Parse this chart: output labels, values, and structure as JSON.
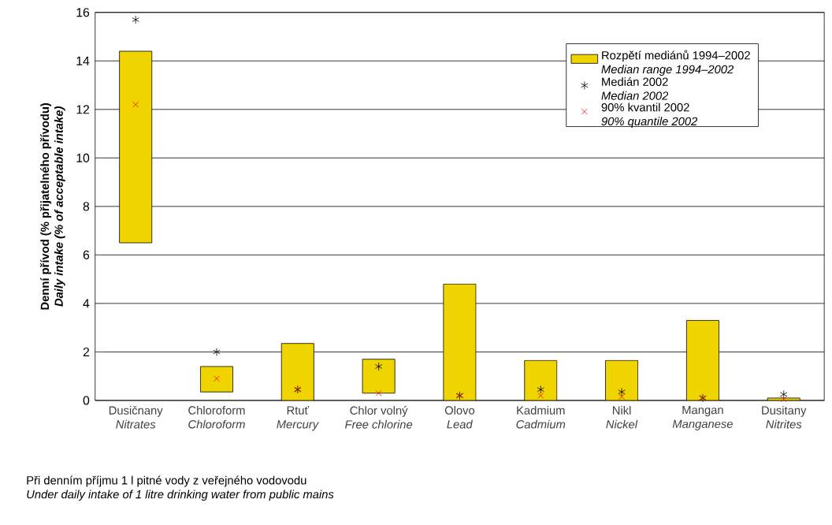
{
  "chart_data": {
    "type": "bar",
    "categories": [
      "Dusičnany\n*Nitrates*",
      "Chloroform\n*Chloroform*",
      "Rtuť\n*Mercury*",
      "Chlor volný\n*Free chlorine*",
      "Olovo\n*Lead*",
      "Kadmium\n*Cadmium*",
      "Nikl\n*Nickel*",
      "Mangan\n*Manganese*",
      "Dusitany\n*Nitrites*"
    ],
    "ylabel": "Denní přívod (% přijatelného přívodu)\n*Daily intake (% of acceptable intake)*",
    "ylim": [
      0,
      16
    ],
    "yticks": [
      0,
      2,
      4,
      6,
      8,
      10,
      12,
      14,
      16
    ],
    "grid": "y",
    "legend": "top right",
    "annotations": [
      "Při denním příjmu 1 l pitné vody z veřejného vodovodu\n*Under daily intake of 1 litre drinking water from public mains*"
    ],
    "series": [
      {
        "name": "Rozpětí mediánů 1994–2002\n*Median range 1994–2002*",
        "color": "#f0d400",
        "base": [
          6.5,
          0.35,
          0,
          0.3,
          0,
          0,
          0,
          0,
          0
        ],
        "values": [
          7.9,
          1.05,
          2.35,
          1.4,
          4.8,
          1.65,
          1.65,
          3.3,
          0.1
        ]
      },
      {
        "name": "Medián 2002\n*Median 2002*",
        "type": "scatter",
        "color": "#000000",
        "x": [
          "Dusičnany\n*Nitrates*",
          "Chloroform\n*Chloroform*",
          "Rtuť\n*Mercury*",
          "Chlor volný\n*Free chlorine*",
          "Olovo\n*Lead*",
          "Kadmium\n*Cadmium*",
          "Nikl\n*Nickel*",
          "Mangan\n*Manganese*",
          "Dusitany\n*Nitrites*"
        ],
        "values": [
          15.7,
          2.0,
          0.45,
          1.4,
          0.2,
          0.45,
          0.35,
          0.1,
          0.25
        ]
      },
      {
        "name": "90% kvantil 2002\n*90% quantile 2002*",
        "type": "scatter",
        "marker": "cross",
        "color": "#ff0000",
        "x": [
          "Dusičnany\n*Nitrates*",
          "Chloroform\n*Chloroform*",
          "Rtuť\n*Mercury*",
          "Chlor volný\n*Free chlorine*",
          "Olovo\n*Lead*",
          "Kadmium\n*Cadmium*",
          "Nikl\n*Nickel*",
          "Mangan\n*Manganese*",
          "Dusitany\n*Nitrites*"
        ],
        "values": [
          12.2,
          0.9,
          0.45,
          0.3,
          0.2,
          0.2,
          0.15,
          0.1,
          0.05
        ]
      }
    ]
  }
}
